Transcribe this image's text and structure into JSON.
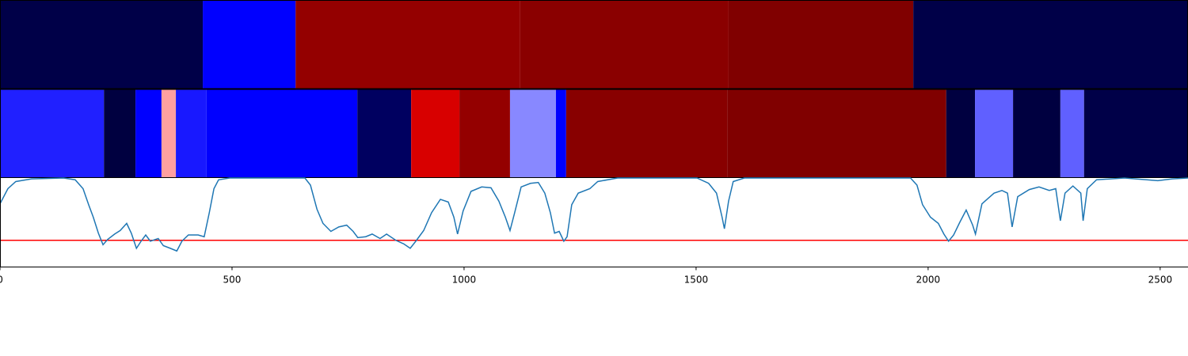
{
  "chart_data": [
    {
      "type": "segments",
      "xlim": [
        0,
        2560
      ],
      "segments": [
        {
          "start": 0,
          "end": 437,
          "color": "#000048"
        },
        {
          "start": 437,
          "end": 637,
          "color": "#0000ff"
        },
        {
          "start": 637,
          "end": 1121,
          "color": "#940000"
        },
        {
          "start": 1121,
          "end": 1570,
          "color": "#8a0000"
        },
        {
          "start": 1570,
          "end": 1968,
          "color": "#800000"
        },
        {
          "start": 1968,
          "end": 2560,
          "color": "#000048"
        }
      ]
    },
    {
      "type": "segments",
      "xlim": [
        0,
        2560
      ],
      "segments": [
        {
          "start": 0,
          "end": 224,
          "color": "#2020ff"
        },
        {
          "start": 224,
          "end": 292,
          "color": "#000040"
        },
        {
          "start": 292,
          "end": 348,
          "color": "#0000ff"
        },
        {
          "start": 348,
          "end": 379,
          "color": "#ffa0a0"
        },
        {
          "start": 379,
          "end": 445,
          "color": "#1818ff"
        },
        {
          "start": 445,
          "end": 770,
          "color": "#0000ff"
        },
        {
          "start": 770,
          "end": 886,
          "color": "#000060"
        },
        {
          "start": 886,
          "end": 990,
          "color": "#d80000"
        },
        {
          "start": 990,
          "end": 1099,
          "color": "#940000"
        },
        {
          "start": 1099,
          "end": 1198,
          "color": "#8888ff"
        },
        {
          "start": 1198,
          "end": 1220,
          "color": "#0000ff"
        },
        {
          "start": 1220,
          "end": 1567,
          "color": "#880000"
        },
        {
          "start": 1567,
          "end": 2039,
          "color": "#800000"
        },
        {
          "start": 2039,
          "end": 2101,
          "color": "#000040"
        },
        {
          "start": 2101,
          "end": 2183,
          "color": "#6060ff"
        },
        {
          "start": 2183,
          "end": 2285,
          "color": "#000040"
        },
        {
          "start": 2285,
          "end": 2336,
          "color": "#6060ff"
        },
        {
          "start": 2336,
          "end": 2560,
          "color": "#000048"
        }
      ]
    },
    {
      "type": "line",
      "xlim": [
        0,
        2560
      ],
      "ylim": [
        0,
        1
      ],
      "xticks": [
        0,
        500,
        1000,
        1500,
        2000,
        2500
      ],
      "color": "#1f77b4",
      "threshold": 0.3,
      "threshold_color": "#ff0000",
      "x": [
        0,
        17,
        34,
        68,
        137,
        162,
        179,
        191,
        201,
        212,
        222,
        232,
        247,
        259,
        273,
        283,
        294,
        304,
        314,
        324,
        341,
        352,
        367,
        381,
        392,
        406,
        427,
        440,
        451,
        461,
        471,
        495,
        657,
        669,
        683,
        696,
        713,
        730,
        747,
        761,
        771,
        788,
        802,
        819,
        833,
        853,
        870,
        884,
        896,
        913,
        930,
        949,
        966,
        978,
        986,
        998,
        1015,
        1038,
        1058,
        1075,
        1089,
        1099,
        1109,
        1123,
        1143,
        1160,
        1174,
        1186,
        1195,
        1205,
        1215,
        1222,
        1232,
        1246,
        1271,
        1288,
        1331,
        1502,
        1527,
        1544,
        1556,
        1561,
        1570,
        1580,
        1604,
        1962,
        1976,
        1988,
        2005,
        2022,
        2034,
        2044,
        2055,
        2068,
        2082,
        2096,
        2102,
        2116,
        2142,
        2159,
        2171,
        2181,
        2193,
        2218,
        2239,
        2261,
        2275,
        2285,
        2295,
        2312,
        2329,
        2334,
        2343,
        2363,
        2423,
        2495,
        2526,
        2560
      ],
      "values": [
        0.71,
        0.88,
        0.96,
        0.99,
        1.0,
        0.98,
        0.88,
        0.7,
        0.56,
        0.38,
        0.25,
        0.31,
        0.37,
        0.41,
        0.49,
        0.38,
        0.21,
        0.29,
        0.36,
        0.29,
        0.32,
        0.24,
        0.21,
        0.18,
        0.29,
        0.36,
        0.36,
        0.34,
        0.61,
        0.88,
        0.98,
        1.0,
        1.0,
        0.92,
        0.65,
        0.49,
        0.4,
        0.45,
        0.47,
        0.4,
        0.33,
        0.34,
        0.37,
        0.32,
        0.37,
        0.3,
        0.26,
        0.21,
        0.29,
        0.41,
        0.61,
        0.76,
        0.73,
        0.56,
        0.37,
        0.63,
        0.85,
        0.9,
        0.89,
        0.74,
        0.56,
        0.41,
        0.61,
        0.9,
        0.94,
        0.95,
        0.83,
        0.61,
        0.38,
        0.4,
        0.29,
        0.34,
        0.7,
        0.83,
        0.88,
        0.96,
        1.0,
        1.0,
        0.94,
        0.83,
        0.56,
        0.43,
        0.74,
        0.96,
        1.0,
        1.0,
        0.92,
        0.7,
        0.56,
        0.49,
        0.37,
        0.29,
        0.36,
        0.5,
        0.64,
        0.47,
        0.37,
        0.71,
        0.83,
        0.86,
        0.83,
        0.45,
        0.79,
        0.87,
        0.9,
        0.86,
        0.88,
        0.52,
        0.83,
        0.91,
        0.83,
        0.52,
        0.88,
        0.98,
        1.0,
        0.97,
        0.99,
        1.0
      ]
    }
  ]
}
